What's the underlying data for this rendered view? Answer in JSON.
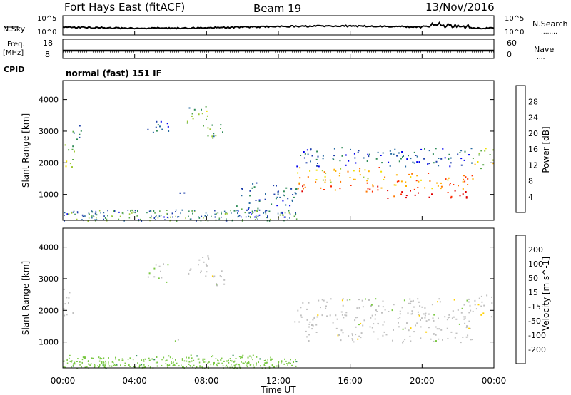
{
  "header": {
    "station": "Fort Hays East (fitACF)",
    "beam": "Beam 19",
    "date": "13/Nov/2016"
  },
  "noise_panel": {
    "left_label": "N.Sky",
    "right_label": "N.Search",
    "right_label_dots": "........",
    "ticks": [
      "10^5",
      "10^0"
    ]
  },
  "freq_panel": {
    "left_label_line1": "Freq.",
    "left_label_line2": "[MHz]",
    "left_ticks": [
      "18",
      "8"
    ],
    "right_label": "Nave",
    "right_label_dots": "....",
    "right_ticks": [
      "60",
      "0"
    ]
  },
  "cpid": {
    "label": "CPID",
    "mode": "normal (fast) 151 IF"
  },
  "chart_data": [
    {
      "type": "heatmap",
      "title": "Power",
      "xlabel": "Time UT",
      "ylabel": "Slant Range [km]",
      "xticks": [
        "00:00",
        "04:00",
        "08:00",
        "12:00",
        "16:00",
        "20:00",
        "00:00"
      ],
      "yticks": [
        "1000",
        "2000",
        "3000",
        "4000"
      ],
      "xlim_hours": [
        0,
        24
      ],
      "ylim_km": [
        180,
        4600
      ],
      "colorbar": {
        "label": "Power [dB]",
        "ticks": [
          "4",
          "8",
          "12",
          "16",
          "20",
          "24",
          "28"
        ],
        "range": [
          0,
          30
        ],
        "colors": [
          "#0000ee",
          "#1c3faa",
          "#276aa0",
          "#2e8b57",
          "#5aa84a",
          "#9cc832",
          "#f0e000",
          "#ffb000",
          "#ff7800",
          "#ff3000",
          "#e00000"
        ]
      },
      "regions": [
        {
          "t0": 0.0,
          "t1": 0.6,
          "r0": 1700,
          "r1": 2700,
          "level": 14
        },
        {
          "t0": 0.4,
          "t1": 1.0,
          "r0": 2700,
          "r1": 3400,
          "level": 8
        },
        {
          "t0": 4.7,
          "t1": 5.9,
          "r0": 2900,
          "r1": 3500,
          "level": 6
        },
        {
          "t0": 5.6,
          "t1": 7.0,
          "r0": 1000,
          "r1": 1100,
          "level": 6
        },
        {
          "t0": 6.9,
          "t1": 8.2,
          "r0": 3100,
          "r1": 3800,
          "level": 12
        },
        {
          "t0": 7.9,
          "t1": 9.1,
          "r0": 2800,
          "r1": 3400,
          "level": 10
        },
        {
          "t0": 9.5,
          "t1": 13.0,
          "r0": 400,
          "r1": 1400,
          "level": 6
        },
        {
          "t0": 13.0,
          "t1": 18.0,
          "r0": 1100,
          "r1": 1900,
          "level": 20
        },
        {
          "t0": 18.0,
          "t1": 22.8,
          "r0": 900,
          "r1": 1700,
          "level": 22
        },
        {
          "t0": 13.0,
          "t1": 23.0,
          "r0": 1900,
          "r1": 2500,
          "level": 6
        },
        {
          "t0": 22.8,
          "t1": 24.0,
          "r0": 1800,
          "r1": 2500,
          "level": 16
        }
      ]
    },
    {
      "type": "heatmap",
      "title": "Velocity",
      "xlabel": "Time UT",
      "ylabel": "Slant Range [km]",
      "xticks": [
        "00:00",
        "04:00",
        "08:00",
        "12:00",
        "16:00",
        "20:00",
        "00:00"
      ],
      "yticks": [
        "1000",
        "2000",
        "3000",
        "4000"
      ],
      "xlim_hours": [
        0,
        24
      ],
      "ylim_km": [
        180,
        4600
      ],
      "colorbar": {
        "label": "Velocity [m s^-1]",
        "ticks": [
          "200",
          "100",
          "50",
          "15",
          "-15",
          "-50",
          "-100",
          "-200"
        ],
        "range": [
          -250,
          250
        ],
        "colors": [
          "#1a3aa8",
          "#3a70c0",
          "#2e8b57",
          "#7ac843",
          "#c0c0c0",
          "#ffd000",
          "#ffa000",
          "#ff6000",
          "#ee1010"
        ]
      },
      "regions": [
        {
          "t0": 0.0,
          "t1": 0.6,
          "r0": 1700,
          "r1": 2700,
          "level": 0
        },
        {
          "t0": 4.7,
          "t1": 5.9,
          "r0": 2900,
          "r1": 3500,
          "level": -20
        },
        {
          "t0": 5.6,
          "t1": 7.0,
          "r0": 1000,
          "r1": 1100,
          "level": -40
        },
        {
          "t0": 6.9,
          "t1": 8.2,
          "r0": 3100,
          "r1": 3800,
          "level": 0
        },
        {
          "t0": 7.9,
          "t1": 9.1,
          "r0": 2800,
          "r1": 3400,
          "level": 0
        },
        {
          "t0": 0.0,
          "t1": 13.0,
          "r0": 180,
          "r1": 600,
          "level": -60
        },
        {
          "t0": 12.8,
          "t1": 22.8,
          "r0": 1000,
          "r1": 1900,
          "level": 0
        },
        {
          "t0": 13.0,
          "t1": 23.0,
          "r0": 1900,
          "r1": 2400,
          "level": 0
        },
        {
          "t0": 22.8,
          "t1": 24.0,
          "r0": 1800,
          "r1": 2500,
          "level": 0
        }
      ]
    }
  ]
}
